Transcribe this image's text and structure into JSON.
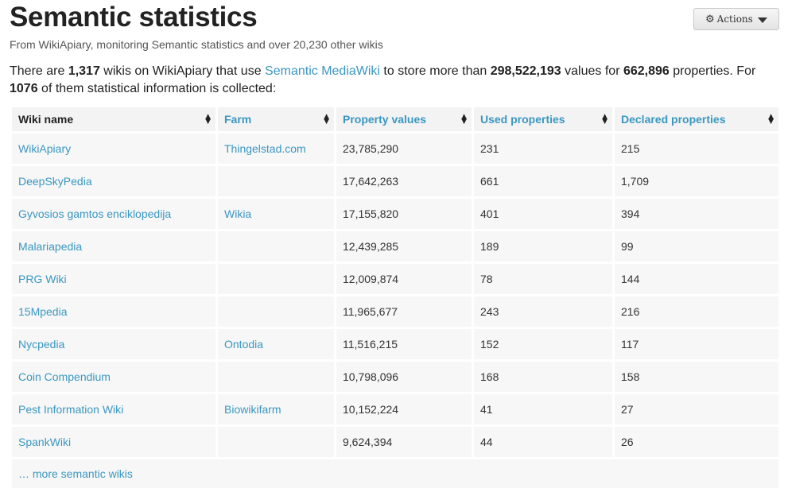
{
  "page": {
    "title": "Semantic statistics",
    "subtitle": "From WikiApiary, monitoring Semantic statistics and over 20,230 other wikis",
    "actions_label": "Actions"
  },
  "intro": {
    "t1": "There are ",
    "wikis_count": "1,317",
    "t2": " wikis on WikiApiary that use ",
    "smw_link": "Semantic MediaWiki",
    "t3": " to store more than ",
    "values_count": "298,522,193",
    "t4": " values for ",
    "properties_count": "662,896",
    "t5": " properties. For ",
    "collected_count": "1076",
    "t6": " of them statistical information is collected:"
  },
  "table": {
    "headers": [
      "Wiki name",
      "Farm",
      "Property values",
      "Used properties",
      "Declared properties"
    ],
    "rows": [
      [
        "WikiApiary",
        "Thingelstad.com",
        "23,785,290",
        "231",
        "215"
      ],
      [
        "DeepSkyPedia",
        "",
        "17,642,263",
        "661",
        "1,709"
      ],
      [
        "Gyvosios gamtos enciklopedija",
        "Wikia",
        "17,155,820",
        "401",
        "394"
      ],
      [
        "Malariapedia",
        "",
        "12,439,285",
        "189",
        "99"
      ],
      [
        "PRG Wiki",
        "",
        "12,009,874",
        "78",
        "144"
      ],
      [
        "15Mpedia",
        "",
        "11,965,677",
        "243",
        "216"
      ],
      [
        "Nycpedia",
        "Ontodia",
        "11,516,215",
        "152",
        "117"
      ],
      [
        "Coin Compendium",
        "",
        "10,798,096",
        "168",
        "158"
      ],
      [
        "Pest Information Wiki",
        "Biowikifarm",
        "10,152,224",
        "41",
        "27"
      ],
      [
        "SpankWiki",
        "",
        "9,624,394",
        "44",
        "26"
      ]
    ],
    "more_link": "… more semantic wikis"
  }
}
